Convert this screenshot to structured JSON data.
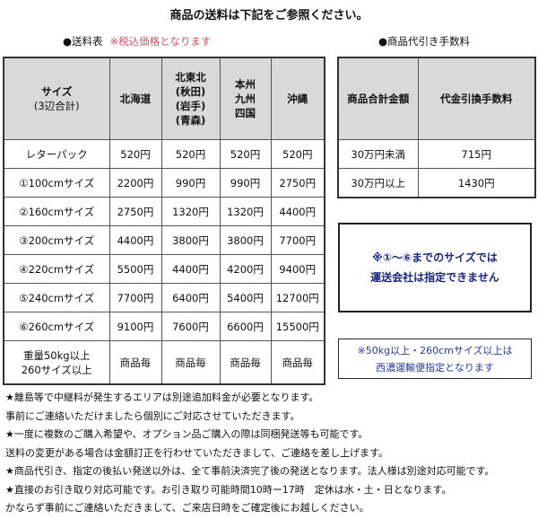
{
  "title": "商品の送料は下記をご参照ください。",
  "shipping": {
    "label": "●送料表",
    "note": "※税込価格となります",
    "headers": [
      [
        "サイズ",
        "(3辺合計)"
      ],
      [
        "北海道"
      ],
      [
        "北東北",
        "(秋田)",
        "(岩手)",
        "(青森)"
      ],
      [
        "本州",
        "九州",
        "四国"
      ],
      [
        "沖縄"
      ]
    ],
    "rows": [
      [
        "レターパック",
        "520円",
        "520円",
        "520円",
        "520円"
      ],
      [
        "①100cmサイズ",
        "2200円",
        "990円",
        "990円",
        "2750円"
      ],
      [
        "②160cmサイズ",
        "2750円",
        "1320円",
        "1320円",
        "4400円"
      ],
      [
        "③200cmサイズ",
        "4400円",
        "3800円",
        "3800円",
        "7700円"
      ],
      [
        "④220cmサイズ",
        "5500円",
        "4400円",
        "4200円",
        "9400円"
      ],
      [
        "⑤240cmサイズ",
        "7700円",
        "6400円",
        "5400円",
        "12700円"
      ],
      [
        "⑥260cmサイズ",
        "9100円",
        "7600円",
        "6600円",
        "15500円"
      ]
    ],
    "last_row": {
      "label": [
        "重量50kg以上",
        "260サイズ以上"
      ],
      "values": [
        "商品毎",
        "商品毎",
        "商品毎",
        "商品毎"
      ]
    }
  },
  "cod": {
    "label": "●商品代引き手数料",
    "headers": [
      "商品合計金額",
      "代金引換手数料"
    ],
    "rows": [
      [
        "30万円未満",
        "715円"
      ],
      [
        "30万円以上",
        "1430円"
      ]
    ]
  },
  "notice1": [
    "※①～⑥までのサイズでは",
    "運送会社は指定できません"
  ],
  "notice2": [
    "※50kg以上・260cmサイズ以上は",
    "西濃運輸便指定となります"
  ],
  "notes": [
    "★離島等で中継料が発生するエリアは別途追加料金が必要となります。",
    "事前にご連絡いただけましたら個別にご対応させていただきます。",
    "★一度に複数のご購入希望や、オプション品ご購入の際は同梱発送等も可能です。",
    "送料の変更がある場合は金額訂正を行わせていただきまして、ご連絡を差し上げます。",
    "★商品代引き、指定の後払い発送以外は、全て事前決済完了後の発送となります。法人様は別途対応可能です。",
    "★直接のお引き取り対応可能です。お引き取り可能時間10時ー17時　定休は水・土・日となります。",
    "かならず事前にご連絡いただきまして、ご来店日時をご確定後にお越しください。"
  ],
  "colors": {
    "note_red": "#d9506a",
    "notice_blue": "#1a2580",
    "header_gray": "#d9d9d9"
  }
}
